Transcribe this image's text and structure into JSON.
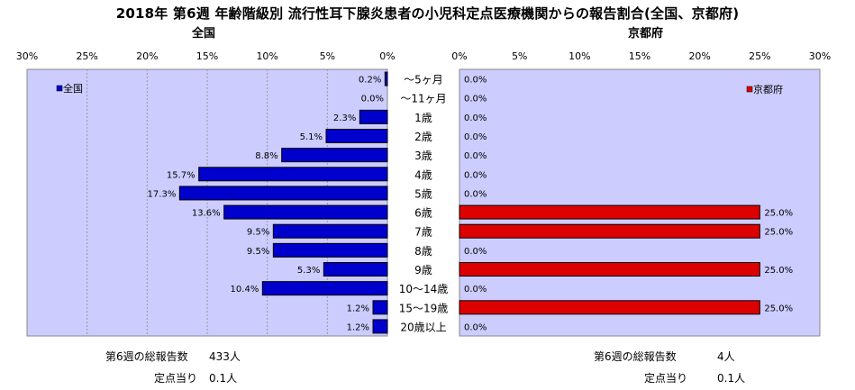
{
  "title": "2018年  第6週  年齢階級別  流行性耳下腺炎患者の小児科定点医療機関からの報告割合(全国、京都府)",
  "left_subtitle": "全国",
  "right_subtitle": "京都府",
  "colors": {
    "national": "#0000cc",
    "kyoto": "#dd0000",
    "plot_bg": "#ccccff"
  },
  "chart_data": [
    {
      "type": "bar",
      "orientation": "horizontal",
      "direction": "right-to-left",
      "title": "全国",
      "legend": "全国",
      "legend_position": "top-left",
      "categories": [
        "～5ヶ月",
        "～11ヶ月",
        "1歳",
        "2歳",
        "3歳",
        "4歳",
        "5歳",
        "6歳",
        "7歳",
        "8歳",
        "9歳",
        "10～14歳",
        "15～19歳",
        "20歳以上"
      ],
      "values": [
        0.2,
        0.0,
        2.3,
        5.1,
        8.8,
        15.7,
        17.3,
        13.6,
        9.5,
        9.5,
        5.3,
        10.4,
        1.2,
        1.2
      ],
      "labels": [
        "0.2%",
        "0.0%",
        "2.3%",
        "5.1%",
        "8.8%",
        "15.7%",
        "17.3%",
        "13.6%",
        "9.5%",
        "9.5%",
        "5.3%",
        "10.4%",
        "1.2%",
        "1.2%"
      ],
      "xlim": [
        0,
        30
      ],
      "ticks": [
        "30%",
        "25%",
        "20%",
        "15%",
        "10%",
        "5%",
        "0%"
      ],
      "grid": true
    },
    {
      "type": "bar",
      "orientation": "horizontal",
      "direction": "left-to-right",
      "title": "京都府",
      "legend": "京都府",
      "legend_position": "top-right",
      "categories": [
        "～5ヶ月",
        "～11ヶ月",
        "1歳",
        "2歳",
        "3歳",
        "4歳",
        "5歳",
        "6歳",
        "7歳",
        "8歳",
        "9歳",
        "10～14歳",
        "15～19歳",
        "20歳以上"
      ],
      "values": [
        0.0,
        0.0,
        0.0,
        0.0,
        0.0,
        0.0,
        0.0,
        25.0,
        25.0,
        0.0,
        25.0,
        0.0,
        25.0,
        0.0
      ],
      "labels": [
        "0.0%",
        "0.0%",
        "0.0%",
        "0.0%",
        "0.0%",
        "0.0%",
        "0.0%",
        "25.0%",
        "25.0%",
        "0.0%",
        "25.0%",
        "0.0%",
        "25.0%",
        "0.0%"
      ],
      "xlim": [
        0,
        30
      ],
      "ticks": [
        "0%",
        "5%",
        "10%",
        "15%",
        "20%",
        "25%",
        "30%"
      ],
      "grid": false
    }
  ],
  "summary": {
    "national": {
      "total_label": "第6週の総報告数",
      "total_value": "433人",
      "per_label": "定点当り",
      "per_value": "0.1人"
    },
    "kyoto": {
      "total_label": "第6週の総報告数",
      "total_value": "4人",
      "per_label": "定点当り",
      "per_value": "0.1人"
    }
  }
}
